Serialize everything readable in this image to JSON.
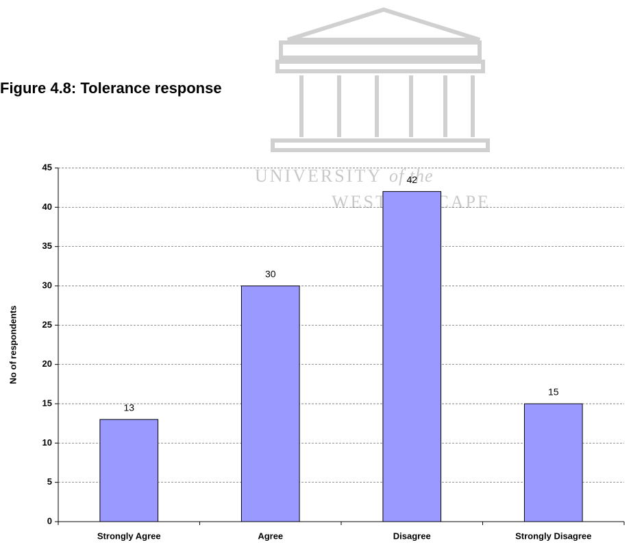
{
  "chart_data": {
    "type": "bar",
    "title": "Figure 4.8: Tolerance response",
    "y_label": "No of respondents",
    "categories": [
      "Strongly Agree",
      "Agree",
      "Disagree",
      "Strongly Disagree"
    ],
    "values": [
      13,
      30,
      42,
      15
    ],
    "color": "#9999ff",
    "ylim": [
      0,
      45
    ],
    "yticks": [
      0,
      5,
      10,
      15,
      20,
      25,
      30,
      35,
      40,
      45
    ],
    "grid": true,
    "watermark": [
      "UNIVERSITY",
      "of the",
      "WESTERN CAPE"
    ]
  }
}
